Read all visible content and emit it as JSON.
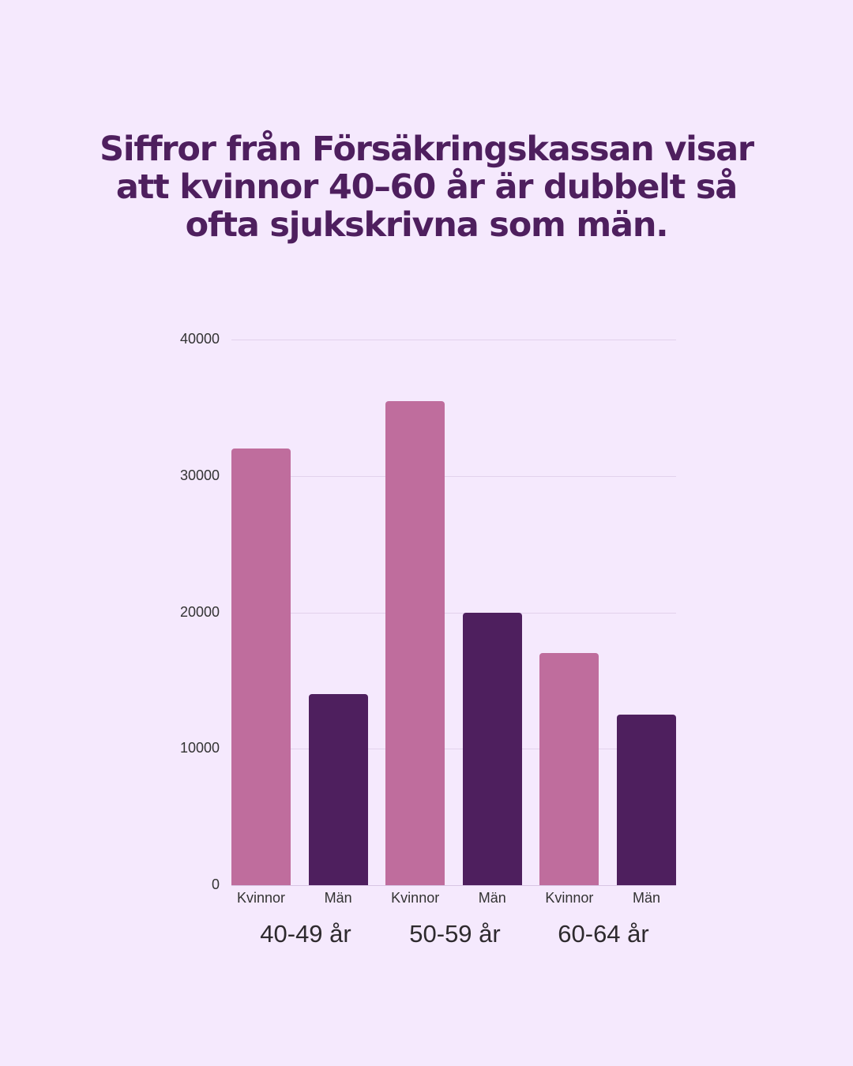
{
  "title": "Siffror från Försäkringskassan visar att kvinnor 40–60 år är dubbelt så ofta sjukskrivna som män.",
  "colors": {
    "background": "#f5e9fd",
    "title": "#4e1f5e",
    "kvinnor": "#bf6d9d",
    "man": "#4e1f5e",
    "grid": "#e2d2ec"
  },
  "chart_data": {
    "type": "bar",
    "title": "Siffror från Försäkringskassan visar att kvinnor 40–60 år är dubbelt så ofta sjukskrivna som män.",
    "xlabel": "",
    "ylabel": "",
    "ylim": [
      0,
      40000
    ],
    "yticks": [
      "0",
      "10000",
      "20000",
      "30000",
      "40000"
    ],
    "grid": true,
    "legend": "none",
    "groups": [
      "40-49 år",
      "50-59 år",
      "60-64 år"
    ],
    "categories": [
      "Kvinnor",
      "Män",
      "Kvinnor",
      "Män",
      "Kvinnor",
      "Män"
    ],
    "values": [
      32000,
      14000,
      35500,
      20000,
      17000,
      12500
    ],
    "series": [
      {
        "name": "Kvinnor",
        "values": [
          32000,
          35500,
          17000
        ]
      },
      {
        "name": "Män",
        "values": [
          14000,
          20000,
          12500
        ]
      }
    ]
  }
}
